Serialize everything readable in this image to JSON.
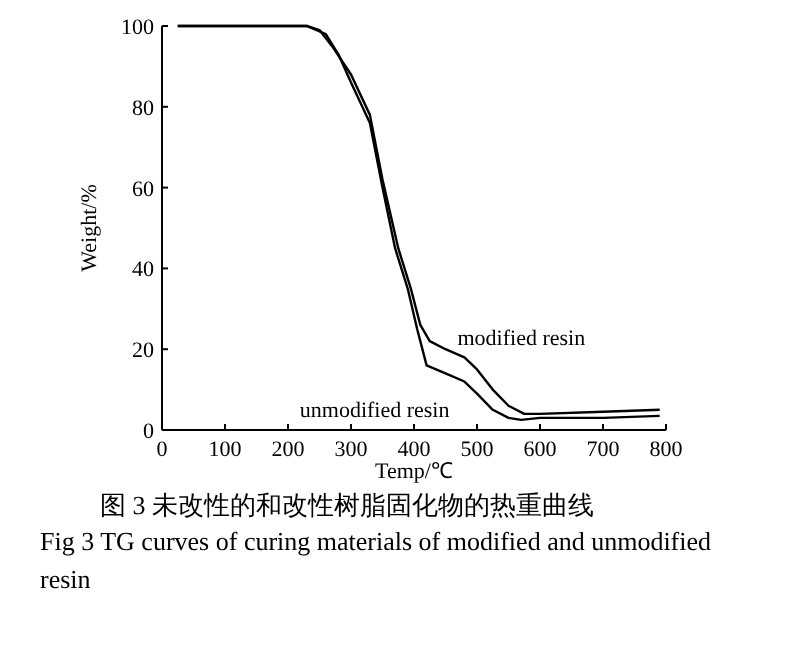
{
  "chart_data": {
    "type": "line",
    "xlabel": "Temp/℃",
    "ylabel": "Weight/%",
    "xlim": [
      0,
      800
    ],
    "ylim": [
      0,
      100
    ],
    "xticks": [
      0,
      100,
      200,
      300,
      400,
      500,
      600,
      700,
      800
    ],
    "yticks": [
      0,
      20,
      40,
      60,
      80,
      100
    ],
    "series": [
      {
        "name": "modified resin",
        "color": "#000000",
        "x": [
          25,
          100,
          200,
          230,
          250,
          270,
          300,
          330,
          350,
          375,
          395,
          410,
          425,
          450,
          480,
          500,
          525,
          550,
          575,
          600,
          700,
          790
        ],
        "values": [
          100,
          100,
          100,
          100,
          99,
          95,
          88,
          78,
          62,
          45,
          35,
          26,
          22,
          20,
          18,
          15,
          10,
          6,
          4,
          4,
          4.5,
          5
        ]
      },
      {
        "name": "unmodified resin",
        "color": "#000000",
        "x": [
          25,
          100,
          200,
          230,
          260,
          280,
          300,
          330,
          350,
          370,
          390,
          405,
          420,
          450,
          480,
          500,
          525,
          550,
          570,
          600,
          700,
          790
        ],
        "values": [
          100,
          100,
          100,
          100,
          98,
          93,
          86,
          76,
          60,
          45,
          35,
          25,
          16,
          14,
          12,
          9,
          5,
          3,
          2.5,
          3,
          3,
          3.5
        ]
      }
    ],
    "annotations": [
      "图 3  未改性的和改性树脂固化物的热重曲线",
      "Fig 3  TG curves of curing materials of modified and unmodified resin"
    ]
  }
}
